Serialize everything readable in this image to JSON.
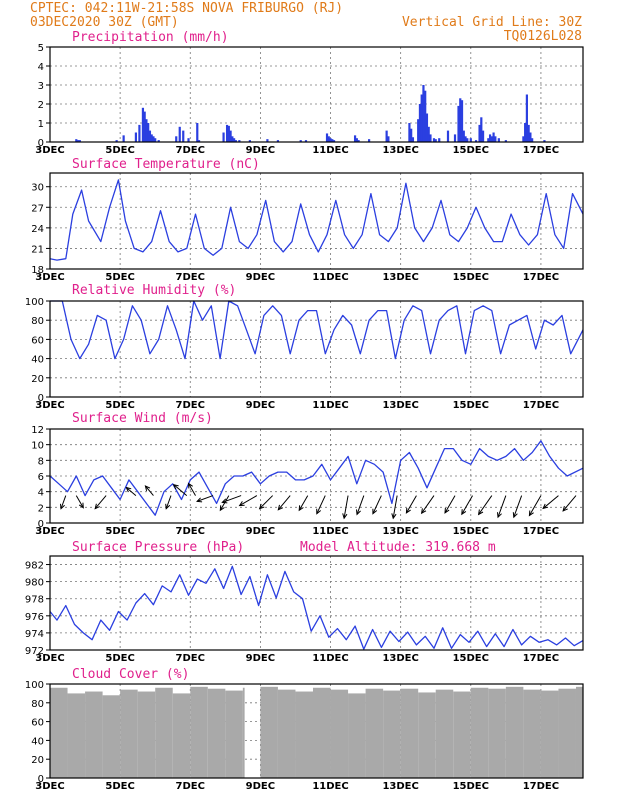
{
  "header": {
    "line1": "CPTEC:   042:11W-21:58S   NOVA FRIBURGO (RJ)",
    "line2": "03DEC2020 30Z (GMT)",
    "right1": "Vertical Grid Line: 30Z",
    "right2": "TQ0126L028"
  },
  "colors": {
    "header": "#e07b1a",
    "title": "#e0208c",
    "series": "#2b3fe0",
    "cloud": "#a9a9a9"
  },
  "x_days": [
    "3DEC",
    "5DEC",
    "7DEC",
    "9DEC",
    "11DEC",
    "13DEC",
    "15DEC",
    "17DEC"
  ],
  "chart_data": [
    {
      "type": "bar",
      "title": "Precipitation (mm/h)",
      "ylim": [
        0,
        5
      ],
      "yticks": [
        0,
        1,
        2,
        3,
        4,
        5
      ],
      "x_range_days": [
        3,
        18.2
      ],
      "x": [
        3.75,
        3.8,
        3.85,
        4.9,
        5.1,
        5.45,
        5.55,
        5.65,
        5.7,
        5.75,
        5.8,
        5.85,
        5.9,
        5.95,
        6.0,
        6.1,
        6.6,
        6.7,
        6.8,
        6.95,
        7.2,
        7.25,
        7.95,
        8.05,
        8.1,
        8.15,
        8.2,
        8.25,
        8.3,
        8.4,
        8.7,
        9.2,
        9.5,
        10.15,
        10.3,
        10.9,
        10.95,
        11.0,
        11.05,
        11.1,
        11.7,
        11.75,
        11.8,
        12.1,
        12.6,
        12.65,
        13.25,
        13.3,
        13.35,
        13.5,
        13.55,
        13.6,
        13.65,
        13.7,
        13.75,
        13.8,
        13.85,
        13.95,
        14.0,
        14.1,
        14.35,
        14.55,
        14.65,
        14.7,
        14.75,
        14.8,
        14.85,
        14.9,
        15.0,
        15.15,
        15.25,
        15.3,
        15.35,
        15.5,
        15.55,
        15.6,
        15.65,
        15.7,
        15.8,
        16.0,
        16.5,
        16.55,
        16.6,
        16.65,
        16.7,
        16.75,
        17.1
      ],
      "values": [
        0.15,
        0.1,
        0.1,
        0.1,
        0.35,
        0.5,
        0.9,
        1.8,
        1.6,
        1.2,
        1.0,
        0.6,
        0.4,
        0.3,
        0.2,
        0.1,
        0.3,
        0.8,
        0.6,
        0.2,
        1.0,
        0.1,
        0.5,
        0.9,
        0.85,
        0.6,
        0.3,
        0.2,
        0.1,
        0.1,
        0.1,
        0.15,
        0.1,
        0.1,
        0.1,
        0.45,
        0.3,
        0.2,
        0.15,
        0.1,
        0.35,
        0.2,
        0.1,
        0.15,
        0.6,
        0.3,
        1.0,
        0.7,
        0.25,
        1.2,
        2.0,
        2.5,
        3.0,
        2.7,
        1.5,
        0.8,
        0.4,
        0.2,
        0.15,
        0.2,
        0.6,
        0.4,
        1.9,
        2.3,
        2.2,
        0.6,
        0.3,
        0.2,
        0.2,
        0.1,
        0.9,
        1.3,
        0.6,
        0.2,
        0.4,
        0.3,
        0.5,
        0.3,
        0.2,
        0.1,
        0.3,
        1.0,
        2.5,
        0.9,
        0.5,
        0.2,
        0.1
      ]
    },
    {
      "type": "line",
      "title": "Surface Temperature (nC)",
      "ylim": [
        18,
        32
      ],
      "yticks": [
        18,
        21,
        24,
        27,
        30
      ],
      "x_range_days": [
        3,
        18.2
      ],
      "x": [
        3.0,
        3.2,
        3.45,
        3.65,
        3.9,
        4.1,
        4.45,
        4.7,
        4.95,
        5.15,
        5.4,
        5.65,
        5.9,
        6.15,
        6.4,
        6.65,
        6.9,
        7.15,
        7.4,
        7.65,
        7.9,
        8.15,
        8.4,
        8.65,
        8.9,
        9.15,
        9.4,
        9.65,
        9.9,
        10.15,
        10.4,
        10.65,
        10.9,
        11.15,
        11.4,
        11.65,
        11.9,
        12.15,
        12.4,
        12.65,
        12.9,
        13.15,
        13.4,
        13.65,
        13.9,
        14.15,
        14.4,
        14.65,
        14.9,
        15.15,
        15.4,
        15.65,
        15.9,
        16.15,
        16.4,
        16.65,
        16.9,
        17.15,
        17.4,
        17.65,
        17.9,
        18.2
      ],
      "values": [
        19.5,
        19.3,
        19.5,
        26,
        29.5,
        25,
        22,
        27,
        31,
        25,
        21,
        20.5,
        22,
        26.5,
        22,
        20.5,
        21,
        26,
        21,
        20,
        21,
        27,
        22,
        21,
        23,
        28,
        22,
        20.5,
        22,
        27.5,
        23,
        20.5,
        23,
        28,
        23,
        21,
        23,
        29,
        23,
        22,
        24,
        30.5,
        24,
        22,
        24,
        28,
        23,
        22,
        24,
        27,
        24,
        22,
        22,
        26,
        23,
        21.5,
        23,
        29,
        23,
        21,
        29,
        26
      ]
    },
    {
      "type": "line",
      "title": "Relative Humidity (%)",
      "ylim": [
        0,
        100
      ],
      "yticks": [
        0,
        20,
        40,
        60,
        80,
        100
      ],
      "x_range_days": [
        3,
        18.2
      ],
      "x": [
        3.0,
        3.35,
        3.6,
        3.85,
        4.1,
        4.35,
        4.6,
        4.85,
        5.1,
        5.35,
        5.6,
        5.85,
        6.1,
        6.35,
        6.6,
        6.85,
        7.1,
        7.35,
        7.6,
        7.85,
        8.1,
        8.35,
        8.6,
        8.85,
        9.1,
        9.35,
        9.6,
        9.85,
        10.1,
        10.35,
        10.6,
        10.85,
        11.1,
        11.35,
        11.6,
        11.85,
        12.1,
        12.35,
        12.6,
        12.85,
        13.1,
        13.35,
        13.6,
        13.85,
        14.1,
        14.35,
        14.6,
        14.85,
        15.1,
        15.35,
        15.6,
        15.85,
        16.1,
        16.35,
        16.6,
        16.85,
        17.1,
        17.35,
        17.6,
        17.85,
        18.2
      ],
      "values": [
        100,
        100,
        60,
        40,
        55,
        85,
        80,
        40,
        60,
        95,
        80,
        45,
        60,
        95,
        70,
        40,
        100,
        80,
        95,
        40,
        100,
        95,
        70,
        45,
        85,
        95,
        85,
        45,
        80,
        90,
        90,
        45,
        70,
        85,
        75,
        45,
        80,
        90,
        90,
        40,
        80,
        95,
        90,
        45,
        80,
        90,
        95,
        45,
        90,
        95,
        90,
        45,
        75,
        80,
        85,
        50,
        80,
        75,
        85,
        45,
        70
      ]
    },
    {
      "type": "line",
      "title": "Surface Wind (m/s)",
      "ylim": [
        0,
        12
      ],
      "yticks": [
        0,
        2,
        4,
        6,
        8,
        10,
        12
      ],
      "x_range_days": [
        3,
        18.2
      ],
      "x": [
        3.0,
        3.25,
        3.5,
        3.75,
        4.0,
        4.25,
        4.5,
        4.75,
        5.0,
        5.25,
        5.5,
        5.75,
        6.0,
        6.25,
        6.5,
        6.75,
        7.0,
        7.25,
        7.5,
        7.75,
        8.0,
        8.25,
        8.5,
        8.75,
        9.0,
        9.25,
        9.5,
        9.75,
        10.0,
        10.25,
        10.5,
        10.75,
        11.0,
        11.25,
        11.5,
        11.75,
        12.0,
        12.25,
        12.5,
        12.75,
        13.0,
        13.25,
        13.5,
        13.75,
        14.0,
        14.25,
        14.5,
        14.75,
        15.0,
        15.25,
        15.5,
        15.75,
        16.0,
        16.25,
        16.5,
        16.75,
        17.0,
        17.25,
        17.5,
        17.75,
        18.2
      ],
      "values": [
        6,
        5,
        4,
        6,
        3.5,
        5.5,
        6,
        4.5,
        3,
        5.5,
        4,
        2.5,
        1,
        4,
        5,
        3,
        5.5,
        6.5,
        4.5,
        2.5,
        5,
        6,
        6,
        6.5,
        5,
        6,
        6.5,
        6.5,
        5.5,
        5.5,
        6,
        7.5,
        5.5,
        7,
        8.5,
        5,
        8,
        7.5,
        6.5,
        2.5,
        8,
        9,
        7,
        4.5,
        7,
        9.5,
        9.5,
        8,
        7.5,
        9.5,
        8.5,
        8,
        8.5,
        9.5,
        8,
        9,
        10.5,
        8.5,
        7,
        6,
        7
      ],
      "arrows_x": [
        3.45,
        3.75,
        4.6,
        5.45,
        5.95,
        6.45,
        6.9,
        7.15,
        7.65,
        8.1,
        8.45,
        8.9,
        9.35,
        9.85,
        10.35,
        10.85,
        11.5,
        11.95,
        12.45,
        12.9,
        13.45,
        13.95,
        14.55,
        15.05,
        15.6,
        16.0,
        16.45,
        17.0,
        17.5,
        18.0
      ],
      "arrows_dir_deg": [
        250,
        300,
        230,
        140,
        130,
        250,
        140,
        120,
        200,
        240,
        200,
        210,
        225,
        230,
        240,
        245,
        260,
        250,
        245,
        260,
        240,
        235,
        240,
        240,
        235,
        250,
        250,
        240,
        220,
        230
      ],
      "arrows_speed": [
        3,
        3,
        4,
        2.5,
        2.5,
        3,
        4,
        3,
        4,
        4,
        5,
        5,
        4.5,
        4.5,
        4,
        5,
        6,
        5,
        5,
        6,
        5,
        5.5,
        5,
        5.5,
        6,
        6,
        6,
        6,
        5,
        5
      ]
    },
    {
      "type": "line",
      "title": "Surface Pressure (hPa)",
      "annotation": "Model Altitude: 319.668 m",
      "ylim": [
        972,
        983
      ],
      "yticks": [
        972,
        974,
        976,
        978,
        980,
        982
      ],
      "x_range_days": [
        3,
        18.2
      ],
      "x": [
        3.0,
        3.2,
        3.45,
        3.7,
        3.95,
        4.2,
        4.45,
        4.7,
        4.95,
        5.2,
        5.45,
        5.7,
        5.95,
        6.2,
        6.45,
        6.7,
        6.95,
        7.2,
        7.45,
        7.7,
        7.95,
        8.2,
        8.45,
        8.7,
        8.95,
        9.2,
        9.45,
        9.7,
        9.95,
        10.2,
        10.45,
        10.7,
        10.95,
        11.2,
        11.45,
        11.7,
        11.95,
        12.2,
        12.45,
        12.7,
        12.95,
        13.2,
        13.45,
        13.7,
        13.95,
        14.2,
        14.45,
        14.7,
        14.95,
        15.2,
        15.45,
        15.7,
        15.95,
        16.2,
        16.45,
        16.7,
        16.95,
        17.2,
        17.45,
        17.7,
        17.95,
        18.2
      ],
      "values": [
        976.5,
        975.5,
        977.2,
        975,
        974,
        973.2,
        975.5,
        974.3,
        976.5,
        975.5,
        977.5,
        978.6,
        977.3,
        979.5,
        978.8,
        980.8,
        978.4,
        980.3,
        979.8,
        981.5,
        979.2,
        981.8,
        978.5,
        980.6,
        977.2,
        980.8,
        978.1,
        981.2,
        978.8,
        978,
        974.2,
        976,
        973.5,
        974.5,
        973.2,
        974.8,
        972.1,
        974.4,
        972.3,
        974.2,
        973,
        974.1,
        972.6,
        973.6,
        972.2,
        974.6,
        972.2,
        973.8,
        972.9,
        974.2,
        972.4,
        973.9,
        972.4,
        974.4,
        972.6,
        973.6,
        972.9,
        973.2,
        972.6,
        973.4,
        972.5,
        973.1
      ]
    },
    {
      "type": "bar",
      "title": "Cloud Cover (%)",
      "ylim": [
        0,
        100
      ],
      "yticks": [
        0,
        20,
        40,
        60,
        80,
        100
      ],
      "x_range_days": [
        3,
        18.2
      ],
      "x": [
        3.0,
        3.5,
        4.0,
        4.5,
        5.0,
        5.5,
        6.0,
        6.5,
        7.0,
        7.5,
        8.0,
        8.5,
        8.55,
        9.0,
        9.5,
        10.0,
        10.5,
        11.0,
        11.5,
        12.0,
        12.5,
        13.0,
        13.5,
        14.0,
        14.5,
        15.0,
        15.5,
        16.0,
        16.5,
        17.0,
        17.5,
        18.0
      ],
      "values": [
        96,
        90,
        92,
        88,
        94,
        92,
        96,
        90,
        97,
        95,
        93,
        96,
        0,
        97,
        94,
        92,
        96,
        94,
        90,
        95,
        93,
        95,
        91,
        94,
        92,
        96,
        95,
        97,
        94,
        93,
        95,
        97
      ]
    }
  ]
}
